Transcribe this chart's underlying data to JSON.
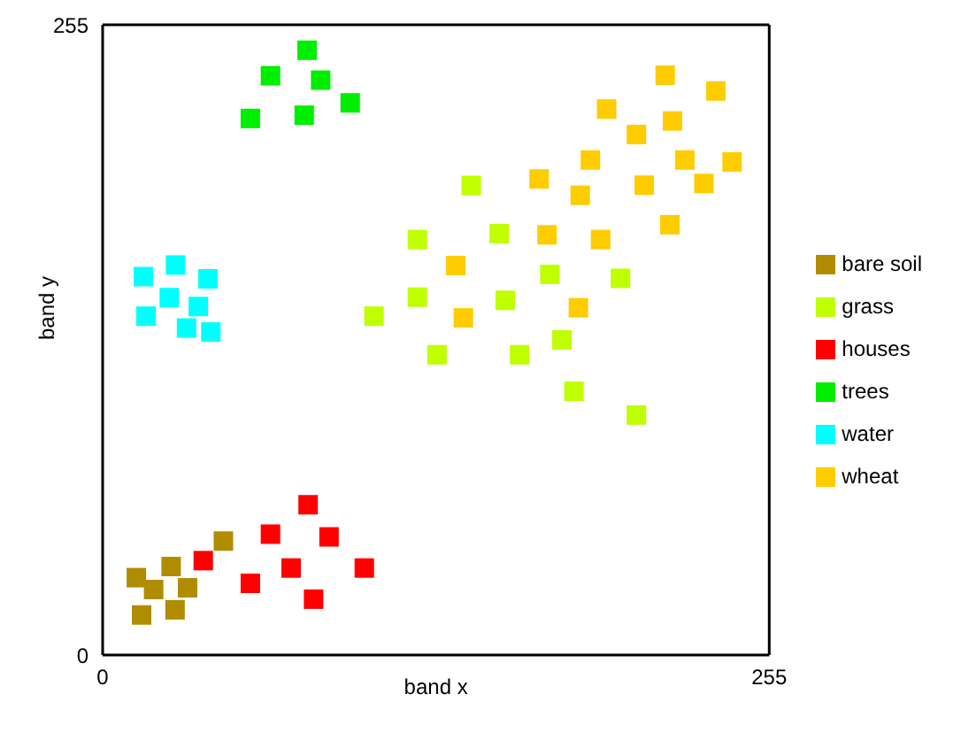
{
  "chart_data": {
    "type": "scatter",
    "xlabel": "band x",
    "ylabel": "band y",
    "xlim": [
      0,
      255
    ],
    "ylim": [
      0,
      255
    ],
    "xticks": [
      0,
      255
    ],
    "yticks": [
      0,
      255
    ],
    "grid": false,
    "legend": "right",
    "marker": "square",
    "series": [
      {
        "name": "grass",
        "color": "#bfff00",
        "x": [
          141,
          120.4,
          151.7,
          171.1,
          198.1,
          120.4,
          154,
          103.8,
          175.7,
          127.9,
          159.5,
          180.3,
          204.2
        ],
        "values": [
          190,
          168.1,
          170.5,
          154,
          152.4,
          144.8,
          143.5,
          137.1,
          127.5,
          121.5,
          121.5,
          106.7,
          97.1
        ]
      },
      {
        "name": "water",
        "color": "#00ffff",
        "x": [
          27.9,
          15.6,
          40.3,
          25.5,
          36.6,
          16.6,
          32.1,
          41.4
        ],
        "values": [
          157.8,
          153.1,
          152.2,
          144.6,
          141,
          137.1,
          132.3,
          130.7
        ]
      },
      {
        "name": "trees",
        "color": "#00ee00",
        "x": [
          78.2,
          64.2,
          83.4,
          94.7,
          56.5,
          77.1
        ],
        "values": [
          244.7,
          234.4,
          232.6,
          223.4,
          217.1,
          218.4
        ]
      },
      {
        "name": "houses",
        "color": "#ff0000",
        "x": [
          78.6,
          64.2,
          86.6,
          38.5,
          72.1,
          100.1,
          56.5,
          80.7
        ],
        "values": [
          60.8,
          48.9,
          47.8,
          38.2,
          35.2,
          35.2,
          29,
          22.6
        ]
      },
      {
        "name": "bare soil",
        "color": "#b08c00",
        "x": [
          46.2,
          12.9,
          26.2,
          19.5,
          32.5,
          14.9,
          27.7
        ],
        "values": [
          46.1,
          31.3,
          35.8,
          26.5,
          27.2,
          16.2,
          18.3
        ]
      },
      {
        "name": "wheat",
        "color": "#ffcc00",
        "x": [
          215.2,
          234.6,
          192.8,
          218,
          204.2,
          186.6,
          222.7,
          240.8,
          167,
          182.7,
          207.2,
          230,
          217,
          170,
          190.5,
          135.1,
          182,
          138
        ],
        "values": [
          234.6,
          228.2,
          220.9,
          216.1,
          210.6,
          200.3,
          200.3,
          199.5,
          192.6,
          186,
          190.1,
          190.8,
          174.1,
          170,
          168.1,
          157.6,
          140.5,
          136.4
        ]
      }
    ]
  }
}
